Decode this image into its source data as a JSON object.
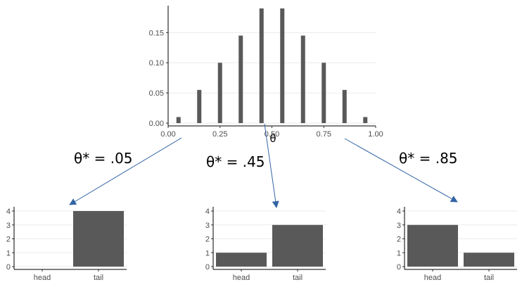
{
  "colors": {
    "bar": "#595959",
    "arrow": "#3465a4",
    "grid": "#ebebeb"
  },
  "chart_data": [
    {
      "id": "prior",
      "type": "bar",
      "xlabel": "θ",
      "ylabel": "",
      "x": [
        0.05,
        0.15,
        0.25,
        0.35,
        0.45,
        0.55,
        0.65,
        0.75,
        0.85,
        0.95
      ],
      "values": [
        0.01,
        0.055,
        0.1,
        0.145,
        0.19,
        0.19,
        0.145,
        0.1,
        0.055,
        0.01
      ],
      "xlim": [
        0,
        1
      ],
      "ylim": [
        0,
        0.19
      ],
      "xticks": [
        0,
        0.25,
        0.5,
        0.75,
        1
      ],
      "xtick_labels": [
        "0.00",
        "0.25",
        "0.50",
        "0.75",
        "1.00"
      ],
      "yticks": [
        0,
        0.05,
        0.1,
        0.15
      ],
      "ytick_labels": [
        "0.00",
        "0.05",
        "0.10",
        "0.15"
      ],
      "grid": true
    },
    {
      "id": "theta-05",
      "type": "bar",
      "annotation": "θ* = .05",
      "from_theta": 0.05,
      "categories": [
        "head",
        "tail"
      ],
      "values": [
        0,
        4
      ],
      "ylim": [
        0,
        4
      ],
      "yticks": [
        0,
        1,
        2,
        3,
        4
      ],
      "ytick_labels": [
        "0",
        "1",
        "2",
        "3",
        "4"
      ],
      "grid": true
    },
    {
      "id": "theta-45",
      "type": "bar",
      "annotation": "θ* = .45",
      "from_theta": 0.45,
      "categories": [
        "head",
        "tail"
      ],
      "values": [
        1,
        3
      ],
      "ylim": [
        0,
        4
      ],
      "yticks": [
        0,
        1,
        2,
        3,
        4
      ],
      "ytick_labels": [
        "0",
        "1",
        "2",
        "3",
        "4"
      ],
      "grid": true
    },
    {
      "id": "theta-85",
      "type": "bar",
      "annotation": "θ* = .85",
      "from_theta": 0.85,
      "categories": [
        "head",
        "tail"
      ],
      "values": [
        3,
        1
      ],
      "ylim": [
        0,
        4
      ],
      "yticks": [
        0,
        1,
        2,
        3,
        4
      ],
      "ytick_labels": [
        "0",
        "1",
        "2",
        "3",
        "4"
      ],
      "grid": true
    }
  ]
}
